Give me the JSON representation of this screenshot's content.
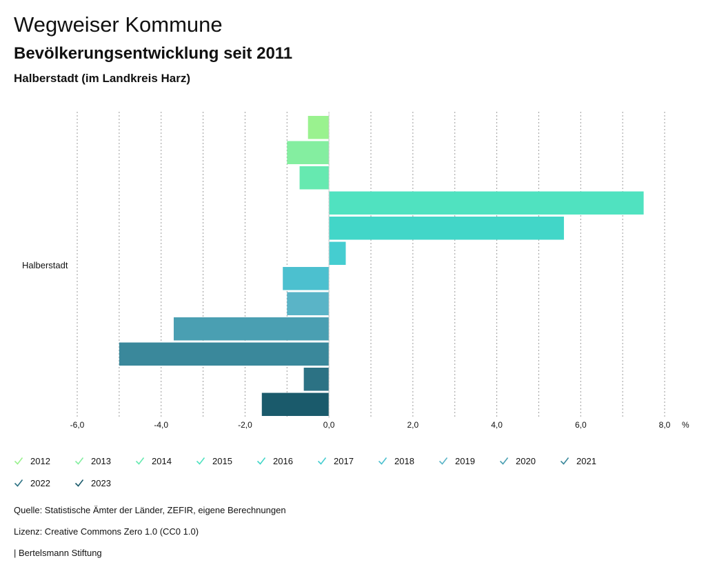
{
  "header": {
    "title": "Wegweiser Kommune",
    "subtitle": "Bevölkerungsentwicklung seit 2011",
    "place": "Halberstadt (im Landkreis Harz)"
  },
  "chart_data": {
    "type": "bar",
    "orientation": "horizontal",
    "categories": [
      "Halberstadt"
    ],
    "xlabel": "%",
    "xlim": [
      -6,
      8
    ],
    "xticks": [
      "-6,0",
      "-4,0",
      "-2,0",
      "0,0",
      "2,0",
      "4,0",
      "6,0",
      "8,0"
    ],
    "xtick_values": [
      -6,
      -4,
      -2,
      0,
      2,
      4,
      6,
      8
    ],
    "grid": true,
    "series": [
      {
        "name": "2012",
        "values": [
          -0.5
        ],
        "color": "#9af28f"
      },
      {
        "name": "2013",
        "values": [
          -1.0
        ],
        "color": "#84eea0"
      },
      {
        "name": "2014",
        "values": [
          -0.7
        ],
        "color": "#66e9b0"
      },
      {
        "name": "2015",
        "values": [
          7.5
        ],
        "color": "#50e2c0"
      },
      {
        "name": "2016",
        "values": [
          5.6
        ],
        "color": "#42d6c8"
      },
      {
        "name": "2017",
        "values": [
          0.4
        ],
        "color": "#45cdd0"
      },
      {
        "name": "2018",
        "values": [
          -1.1
        ],
        "color": "#4cc0cf"
      },
      {
        "name": "2019",
        "values": [
          -1.0
        ],
        "color": "#5ab4c7"
      },
      {
        "name": "2020",
        "values": [
          -3.7
        ],
        "color": "#4a9fb2"
      },
      {
        "name": "2021",
        "values": [
          -5.0
        ],
        "color": "#3a889b"
      },
      {
        "name": "2022",
        "values": [
          -0.6
        ],
        "color": "#2c7284"
      },
      {
        "name": "2023",
        "values": [
          -1.6
        ],
        "color": "#1a5a6b"
      }
    ]
  },
  "footer": {
    "source": "Quelle: Statistische Ämter der Länder, ZEFIR, eigene Berechnungen",
    "license": "Lizenz: Creative Commons Zero 1.0 (CC0 1.0)",
    "publisher": "| Bertelsmann Stiftung"
  }
}
